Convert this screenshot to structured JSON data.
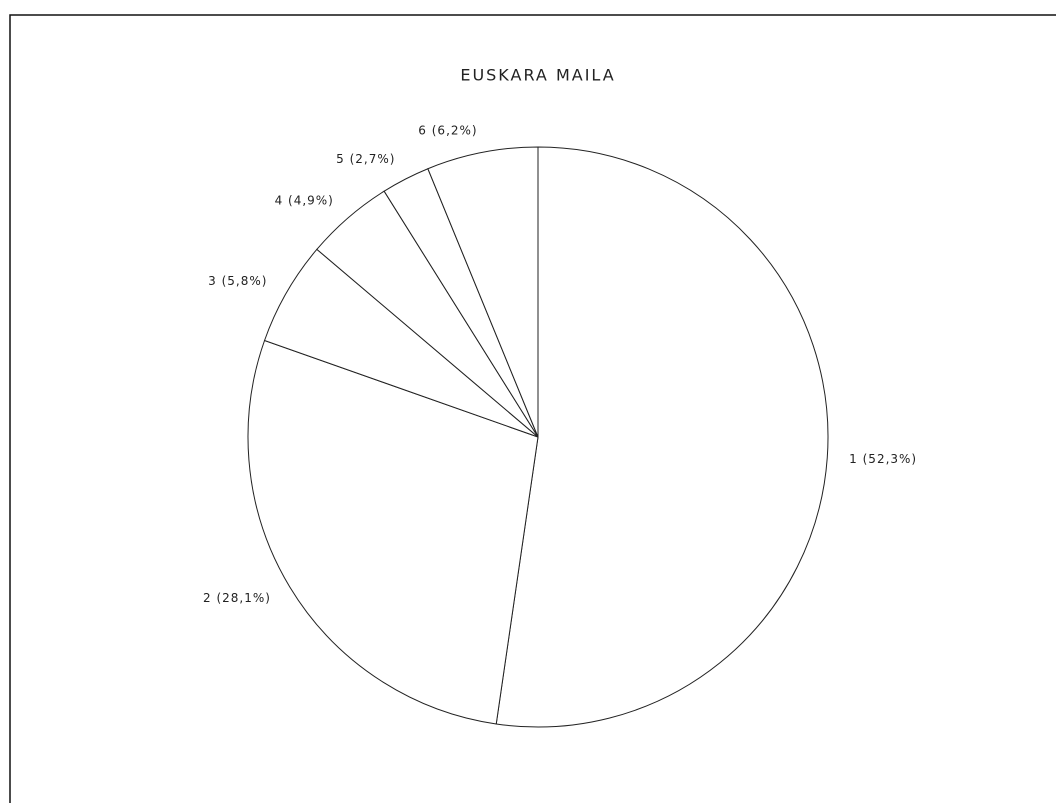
{
  "chart_data": {
    "type": "pie",
    "title": "EUSKARA MAILA",
    "values": [
      52.3,
      28.1,
      5.8,
      4.9,
      2.7,
      6.2
    ],
    "value_labels": [
      "1 (52,3%)",
      "2 (28,1%)",
      "3 (5,8%)",
      "4 (4,9%)",
      "5 (2,7%)",
      "6 (6,2%)"
    ],
    "color": "#ffffff"
  }
}
